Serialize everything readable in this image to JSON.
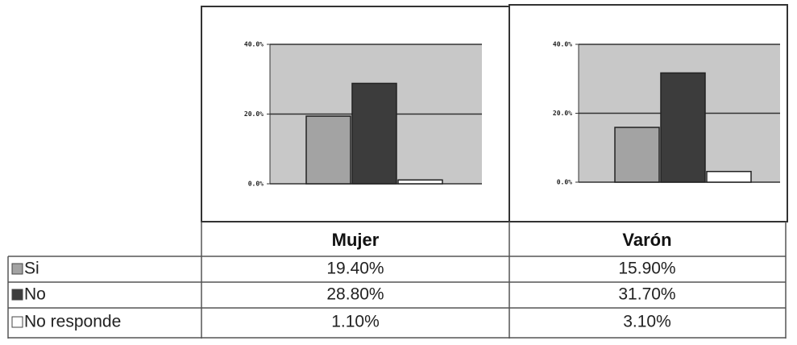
{
  "chart_data": [
    {
      "type": "bar",
      "title": "Mujer",
      "categories": [
        "Si",
        "No",
        "No responde"
      ],
      "values": [
        19.4,
        28.8,
        1.1
      ],
      "value_labels": [
        "19.40%",
        "28.80%",
        "1.10%"
      ],
      "colors": [
        "#a3a3a3",
        "#3c3c3c",
        "#ffffff"
      ],
      "ylim": [
        0,
        40
      ],
      "yticks": [
        {
          "value": 0,
          "label": "0.0%"
        },
        {
          "value": 20,
          "label": "20.0%"
        },
        {
          "value": 40,
          "label": "40.0%"
        }
      ],
      "grid": true
    },
    {
      "type": "bar",
      "title": "Varón",
      "values": [
        15.9,
        31.7,
        3.1
      ],
      "value_labels": [
        "15.90%",
        "31.70%",
        "3.10%"
      ],
      "colors": [
        "#a3a3a3",
        "#3c3c3c",
        "#ffffff"
      ],
      "ylim": [
        0,
        40
      ],
      "yticks": [
        {
          "value": 0,
          "label": "0.0%"
        },
        {
          "value": 20,
          "label": "20.0%"
        },
        {
          "value": 40,
          "label": "40.0%"
        }
      ],
      "grid": true
    }
  ]
}
